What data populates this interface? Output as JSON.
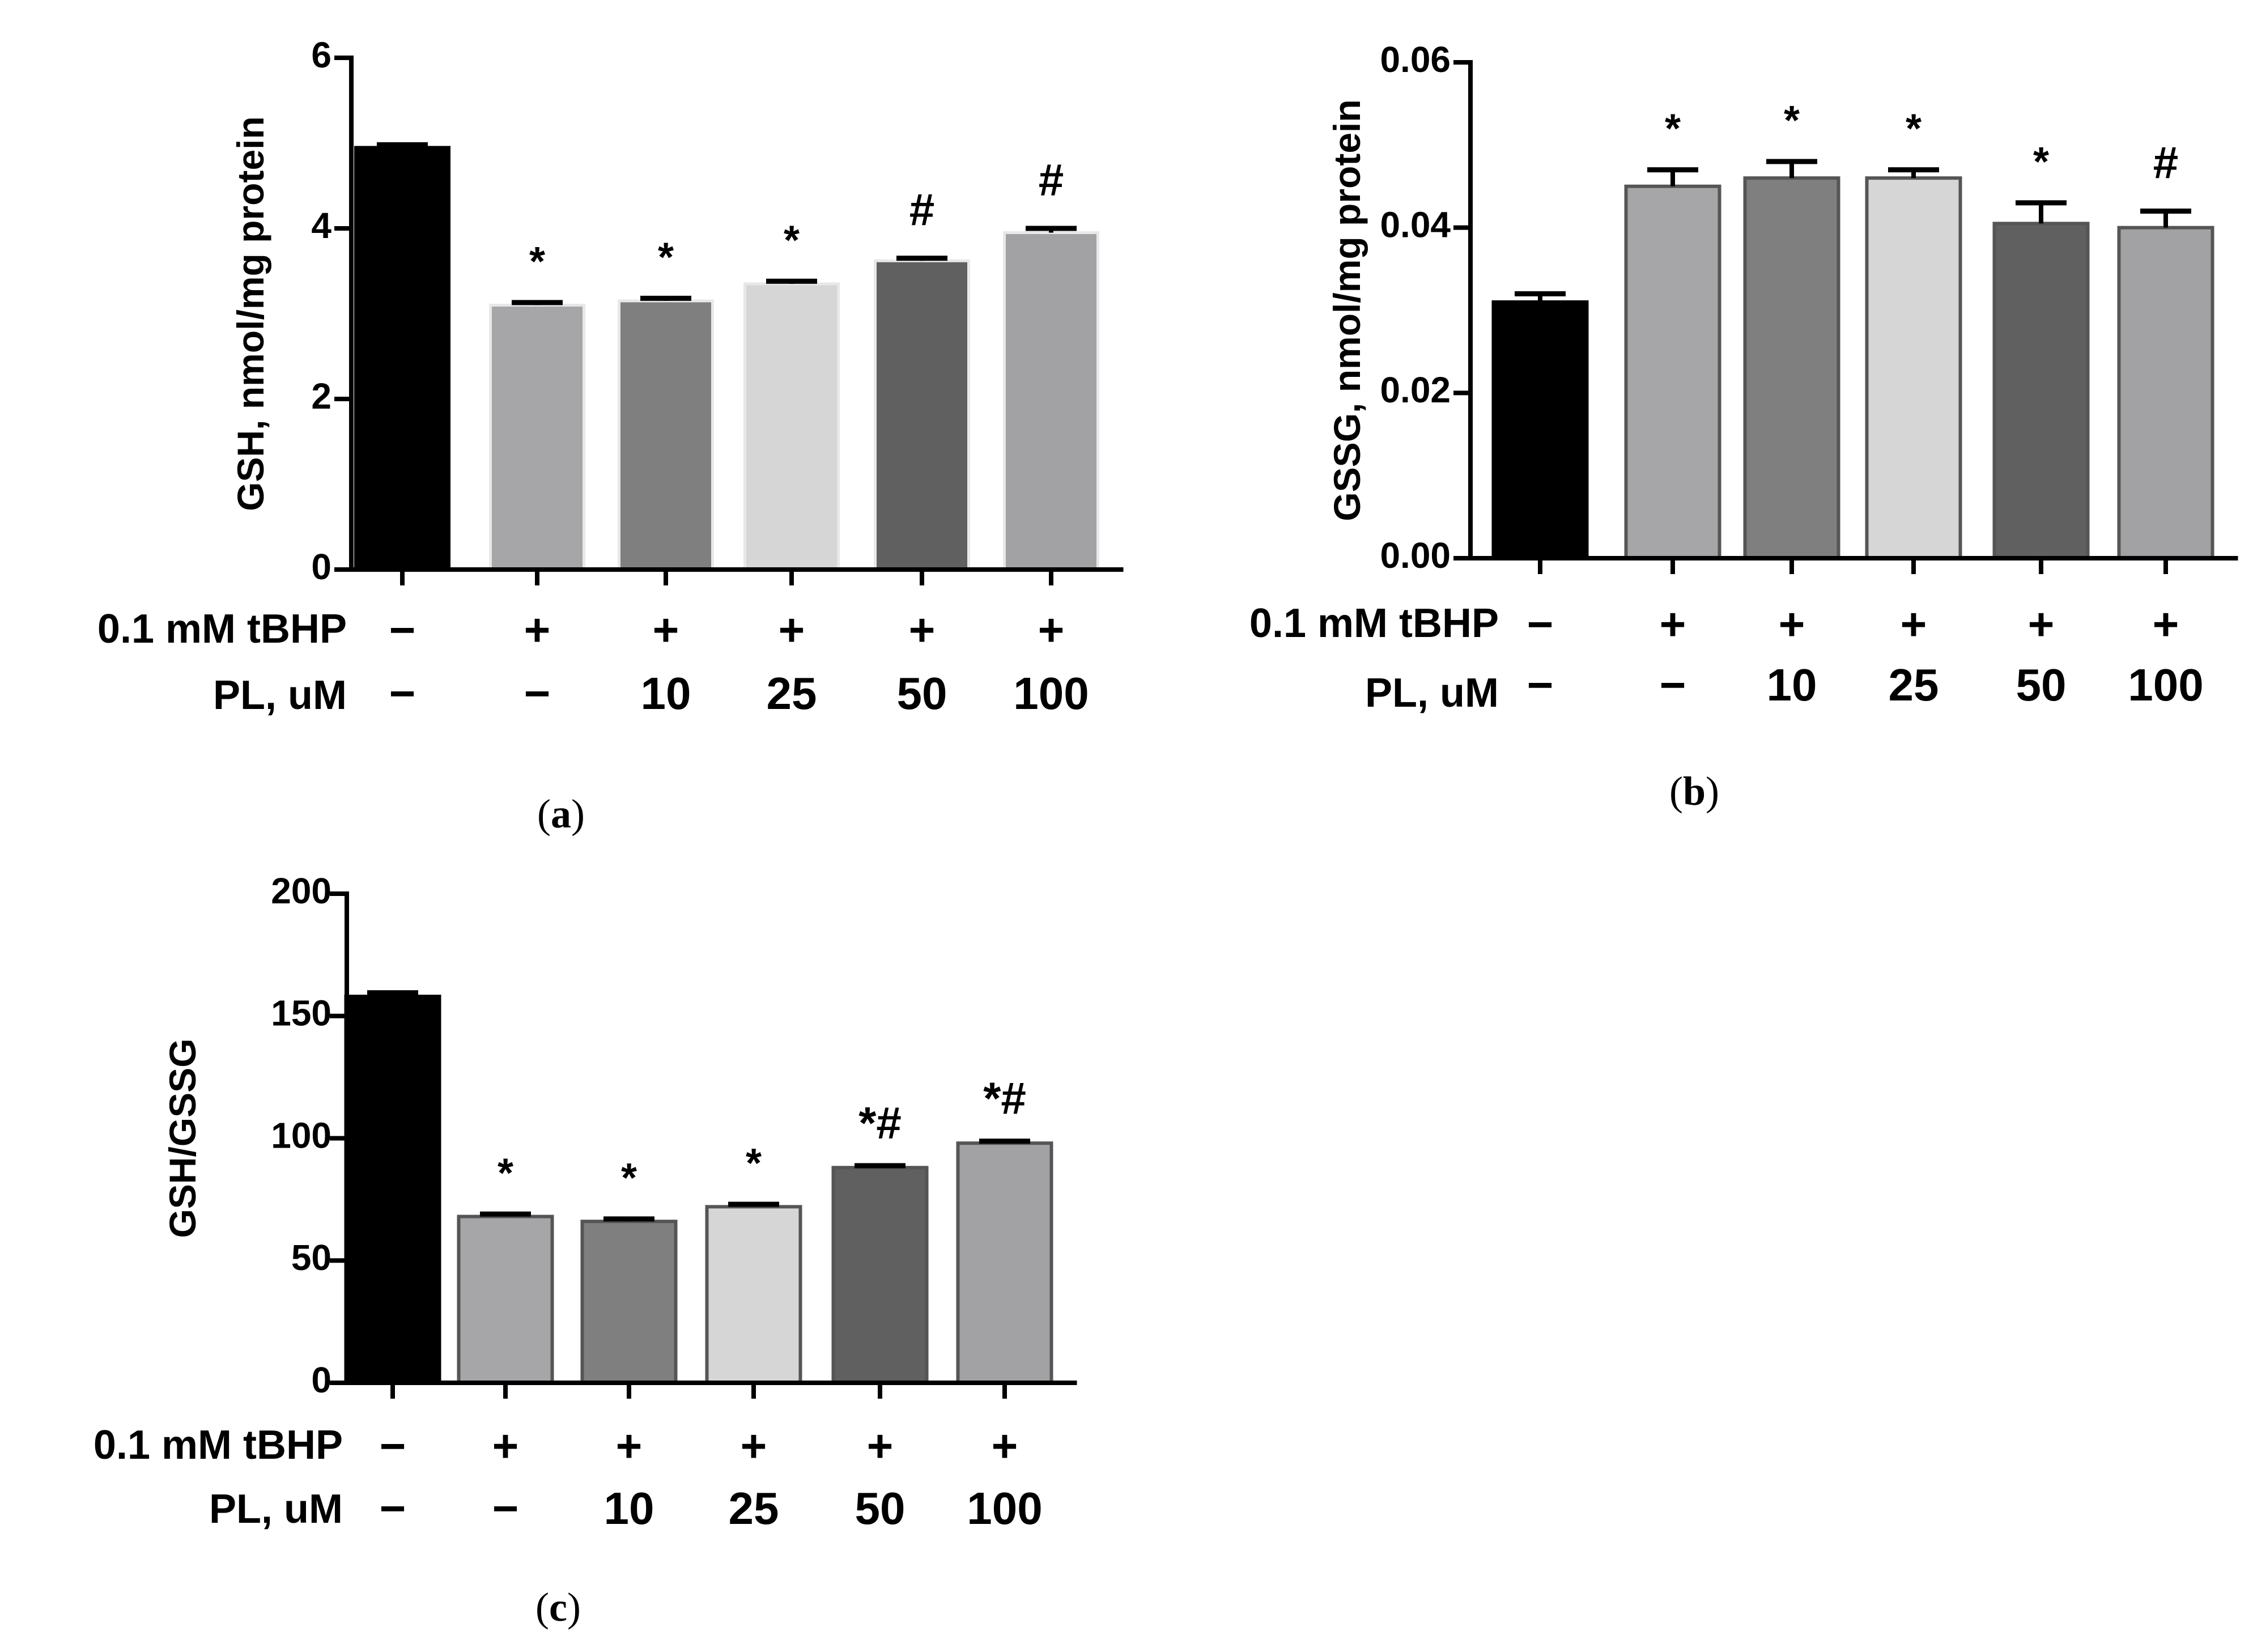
{
  "panels": [
    {
      "id": "a",
      "panel_label": "a",
      "chart_data": {
        "type": "bar",
        "ylabel": "GSH, nmol/mg protein",
        "ylim": [
          0,
          6
        ],
        "yticks": [
          0,
          2,
          4,
          6
        ],
        "ytick_labels": [
          "0",
          "2",
          "4",
          "6"
        ],
        "row_labels": [
          "0.1 mM tBHP",
          "PL, uM"
        ],
        "conditions_tbhp": [
          "−",
          "+",
          "+",
          "+",
          "+",
          "+"
        ],
        "conditions_pl": [
          "−",
          "−",
          "10",
          "25",
          "50",
          "100"
        ],
        "values": [
          4.95,
          3.1,
          3.15,
          3.35,
          3.62,
          3.95
        ],
        "errors": [
          0.03,
          0.03,
          0.03,
          0.03,
          0.03,
          0.05
        ],
        "significance": [
          "",
          "*",
          "*",
          "*",
          "#",
          "#"
        ],
        "colors": [
          "#000000",
          "#a6a6a8",
          "#7f7f7f",
          "#d6d6d6",
          "#606060",
          "#a2a2a4"
        ]
      }
    },
    {
      "id": "b",
      "panel_label": "b",
      "chart_data": {
        "type": "bar",
        "ylabel": "GSSG, nmol/mg protein",
        "ylim": [
          0,
          0.06
        ],
        "yticks": [
          0,
          0.02,
          0.04,
          0.06
        ],
        "ytick_labels": [
          "0.00",
          "0.02",
          "0.04",
          "0.06"
        ],
        "row_labels": [
          "0.1 mM tBHP",
          "PL, uM"
        ],
        "conditions_tbhp": [
          "−",
          "+",
          "+",
          "+",
          "+",
          "+"
        ],
        "conditions_pl": [
          "−",
          "−",
          "10",
          "25",
          "50",
          "100"
        ],
        "values": [
          0.031,
          0.045,
          0.046,
          0.046,
          0.0405,
          0.04
        ],
        "errors": [
          0.001,
          0.002,
          0.002,
          0.001,
          0.0025,
          0.002
        ],
        "significance": [
          "",
          "*",
          "*",
          "*",
          "*",
          "#"
        ],
        "colors": [
          "#000000",
          "#a6a6a8",
          "#7f7f7f",
          "#d6d6d6",
          "#606060",
          "#a2a2a4"
        ]
      }
    },
    {
      "id": "c",
      "panel_label": "c",
      "chart_data": {
        "type": "bar",
        "ylabel": "GSH/GSSG",
        "ylim": [
          0,
          200
        ],
        "yticks": [
          0,
          50,
          100,
          150,
          200
        ],
        "ytick_labels": [
          "0",
          "50",
          "100",
          "150",
          "200"
        ],
        "row_labels": [
          "0.1 mM tBHP",
          "PL, uM"
        ],
        "conditions_tbhp": [
          "−",
          "+",
          "+",
          "+",
          "+",
          "+"
        ],
        "conditions_pl": [
          "−",
          "−",
          "10",
          "25",
          "50",
          "100"
        ],
        "values": [
          158,
          68,
          66,
          72,
          88,
          98
        ],
        "errors": [
          1.5,
          1,
          1,
          1,
          0.8,
          0.8
        ],
        "significance": [
          "",
          "*",
          "*",
          "*",
          "*#",
          "*#"
        ],
        "colors": [
          "#000000",
          "#a6a6a8",
          "#7f7f7f",
          "#d6d6d6",
          "#606060",
          "#a2a2a4"
        ]
      }
    }
  ]
}
